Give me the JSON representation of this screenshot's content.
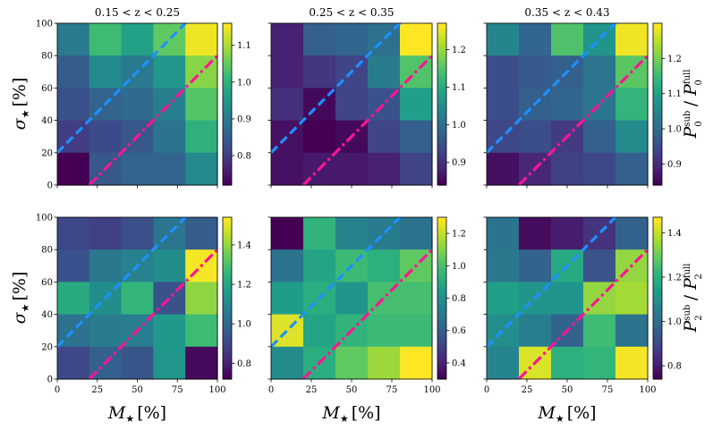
{
  "colormap": [
    "#440154",
    "#482878",
    "#3e4989",
    "#31688e",
    "#26828e",
    "#1f9e89",
    "#35b779",
    "#6ece58",
    "#b5de2b",
    "#fde725"
  ],
  "line_colors": {
    "dashed": "#1e90ff",
    "dashdot": "#ff1493"
  },
  "chart_data": {
    "type": "heatmap",
    "grid_bins": 5,
    "x_ticks": [
      "0",
      "25",
      "50",
      "75",
      "100"
    ],
    "y_ticks": [
      "0",
      "20",
      "40",
      "60",
      "80",
      "100"
    ],
    "xlabel_sym": "M",
    "xlabel_unit": "[%]",
    "ylabel_sym": "σ",
    "ylabel_unit": "[%]",
    "star": "★",
    "row_labels": [
      {
        "base": "P",
        "sub": "0",
        "sup_num": "sub",
        "sup_den": "full"
      },
      {
        "base": "P",
        "sub": "2",
        "sup_num": "sub",
        "sup_den": "full"
      }
    ],
    "col_titles": [
      "0.15 < z < 0.25",
      "0.25 < z < 0.35",
      "0.35 < z < 0.43"
    ],
    "panels": [
      {
        "row": 0,
        "col": 0,
        "vmin": 0.72,
        "vmax": 1.16,
        "cbar_ticks": [
          0.8,
          0.9,
          1.0,
          1.1
        ],
        "cbar_labels": [
          "0.8",
          "0.9",
          "1.0",
          "1.1"
        ],
        "values": [
          [
            0.9,
            1.02,
            0.97,
            1.05,
            1.15
          ],
          [
            0.85,
            0.93,
            0.9,
            0.95,
            1.08
          ],
          [
            0.83,
            0.86,
            0.87,
            0.91,
            1.04
          ],
          [
            0.8,
            0.82,
            0.84,
            0.89,
            1.0
          ],
          [
            0.72,
            0.84,
            0.86,
            0.86,
            0.93
          ]
        ]
      },
      {
        "row": 0,
        "col": 1,
        "vmin": 0.84,
        "vmax": 1.27,
        "cbar_ticks": [
          0.9,
          1.0,
          1.1,
          1.2
        ],
        "cbar_labels": [
          "0.9",
          "1.0",
          "1.1",
          "1.2"
        ],
        "values": [
          [
            0.88,
            0.97,
            0.98,
            1.0,
            1.27
          ],
          [
            0.88,
            0.91,
            0.93,
            1.02,
            1.15
          ],
          [
            0.9,
            0.85,
            0.93,
            0.95,
            1.08
          ],
          [
            0.86,
            0.84,
            0.85,
            0.93,
            0.97
          ],
          [
            0.86,
            0.87,
            0.87,
            0.88,
            0.93
          ]
        ]
      },
      {
        "row": 0,
        "col": 2,
        "vmin": 0.84,
        "vmax": 1.3,
        "cbar_ticks": [
          0.9,
          1.0,
          1.1,
          1.2
        ],
        "cbar_labels": [
          "0.9",
          "1.0",
          "1.1",
          "1.2"
        ],
        "values": [
          [
            1.05,
            0.99,
            1.17,
            1.08,
            1.29
          ],
          [
            0.95,
            0.97,
            0.98,
            1.02,
            1.18
          ],
          [
            0.95,
            0.98,
            0.99,
            1.02,
            1.14
          ],
          [
            0.94,
            0.95,
            0.92,
            0.98,
            1.06
          ],
          [
            0.86,
            0.89,
            0.93,
            0.94,
            0.98
          ]
        ]
      },
      {
        "row": 1,
        "col": 0,
        "vmin": 0.72,
        "vmax": 1.54,
        "cbar_ticks": [
          0.8,
          1.0,
          1.2,
          1.4
        ],
        "cbar_labels": [
          "0.8",
          "1.0",
          "1.2",
          "1.4"
        ],
        "values": [
          [
            0.9,
            0.88,
            0.92,
            1.04,
            0.96
          ],
          [
            0.93,
            1.05,
            1.08,
            1.12,
            1.53
          ],
          [
            1.22,
            1.12,
            1.26,
            0.93,
            1.4
          ],
          [
            1.03,
            1.06,
            1.07,
            1.16,
            1.28
          ],
          [
            0.9,
            0.97,
            0.94,
            1.15,
            0.74
          ]
        ]
      },
      {
        "row": 1,
        "col": 1,
        "vmin": 0.3,
        "vmax": 1.3,
        "cbar_ticks": [
          0.4,
          0.6,
          0.8,
          1.0,
          1.2
        ],
        "cbar_labels": [
          "0.4",
          "0.6",
          "0.8",
          "1.0",
          "1.2"
        ],
        "values": [
          [
            0.3,
            0.95,
            0.75,
            0.72,
            0.68
          ],
          [
            0.68,
            0.88,
            0.98,
            0.93,
            1.05
          ],
          [
            0.85,
            0.92,
            0.82,
            1.0,
            1.0
          ],
          [
            1.25,
            0.88,
            0.95,
            0.98,
            0.98
          ],
          [
            0.78,
            0.92,
            1.05,
            1.15,
            1.3
          ]
        ]
      },
      {
        "row": 1,
        "col": 2,
        "vmin": 0.74,
        "vmax": 1.47,
        "cbar_ticks": [
          0.8,
          1.0,
          1.2,
          1.4
        ],
        "cbar_labels": [
          "0.8",
          "1.0",
          "1.2",
          "1.4"
        ],
        "values": [
          [
            1.02,
            0.76,
            0.8,
            0.85,
            0.97
          ],
          [
            1.03,
            0.97,
            1.18,
            0.93,
            1.35
          ],
          [
            1.15,
            1.12,
            1.12,
            1.35,
            1.37
          ],
          [
            1.1,
            1.05,
            0.97,
            1.24,
            1.02
          ],
          [
            1.07,
            1.43,
            1.2,
            1.22,
            1.46
          ]
        ]
      }
    ],
    "lines": [
      {
        "style": "dashed",
        "color": "dashed",
        "x": [
          0,
          100
        ],
        "y": [
          20,
          120
        ]
      },
      {
        "style": "dashdot",
        "color": "dashdot",
        "x": [
          20,
          100
        ],
        "y": [
          0,
          80
        ]
      }
    ],
    "xlim": [
      0,
      100
    ],
    "ylim": [
      0,
      100
    ]
  }
}
